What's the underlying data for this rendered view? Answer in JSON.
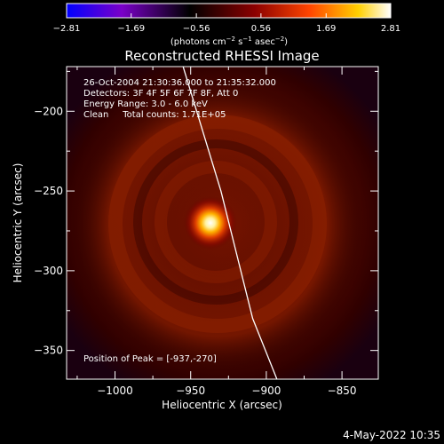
{
  "chart_data": {
    "type": "heatmap",
    "title": "Reconstructed RHESSI Image",
    "xlabel": "Heliocentric X (arcsec)",
    "ylabel": "Heliocentric Y (arcsec)",
    "xlim": [
      -1032,
      -826
    ],
    "ylim": [
      -368,
      -172
    ],
    "xticks": [
      -1000,
      -950,
      -900,
      -850
    ],
    "xtick_labels": [
      "−1000",
      "−950",
      "−900",
      "−850"
    ],
    "yticks": [
      -350,
      -300,
      -250,
      -200
    ],
    "ytick_labels": [
      "−350",
      "−300",
      "−250",
      "−200"
    ],
    "colorbar": {
      "min": -2.81,
      "max": 2.81,
      "ticks": [
        -2.81,
        -1.69,
        -0.56,
        0.56,
        1.69,
        2.81
      ],
      "tick_labels": [
        "−2.81",
        "−1.69",
        "−0.56",
        "0.56",
        "1.69",
        "2.81"
      ],
      "units_html": "(photons cm<tspan dy=\"-4\" font-size=\"7\">−2</tspan><tspan dy=\"4\"> s</tspan><tspan dy=\"-4\" font-size=\"7\">−1</tspan><tspan dy=\"4\"> asec</tspan><tspan dy=\"-4\" font-size=\"7\">−2</tspan><tspan dy=\"4\">)</tspan>",
      "colors": [
        "#0000ff",
        "#7a00c8",
        "#000000",
        "#8b0000",
        "#ff4500",
        "#ffd000",
        "#ffffff"
      ]
    },
    "peak": {
      "x": -937,
      "y": -270,
      "value": 2.81
    },
    "limb_curve": [
      [
        -955,
        -172
      ],
      [
        -930,
        -250
      ],
      [
        -909,
        -330
      ],
      [
        -893,
        -368
      ]
    ],
    "annotations": [
      "26-Oct-2004 21:30:36.000 to 21:35:32.000",
      "Detectors: 3F 4F 5F 6F 7F 8F, Att 0",
      "Energy Range: 3.0 - 6.0 keV",
      "Clean     Total counts: 1.71E+05",
      "Position of Peak = [-937,-270]"
    ],
    "footer": "4-May-2022 10:35"
  }
}
